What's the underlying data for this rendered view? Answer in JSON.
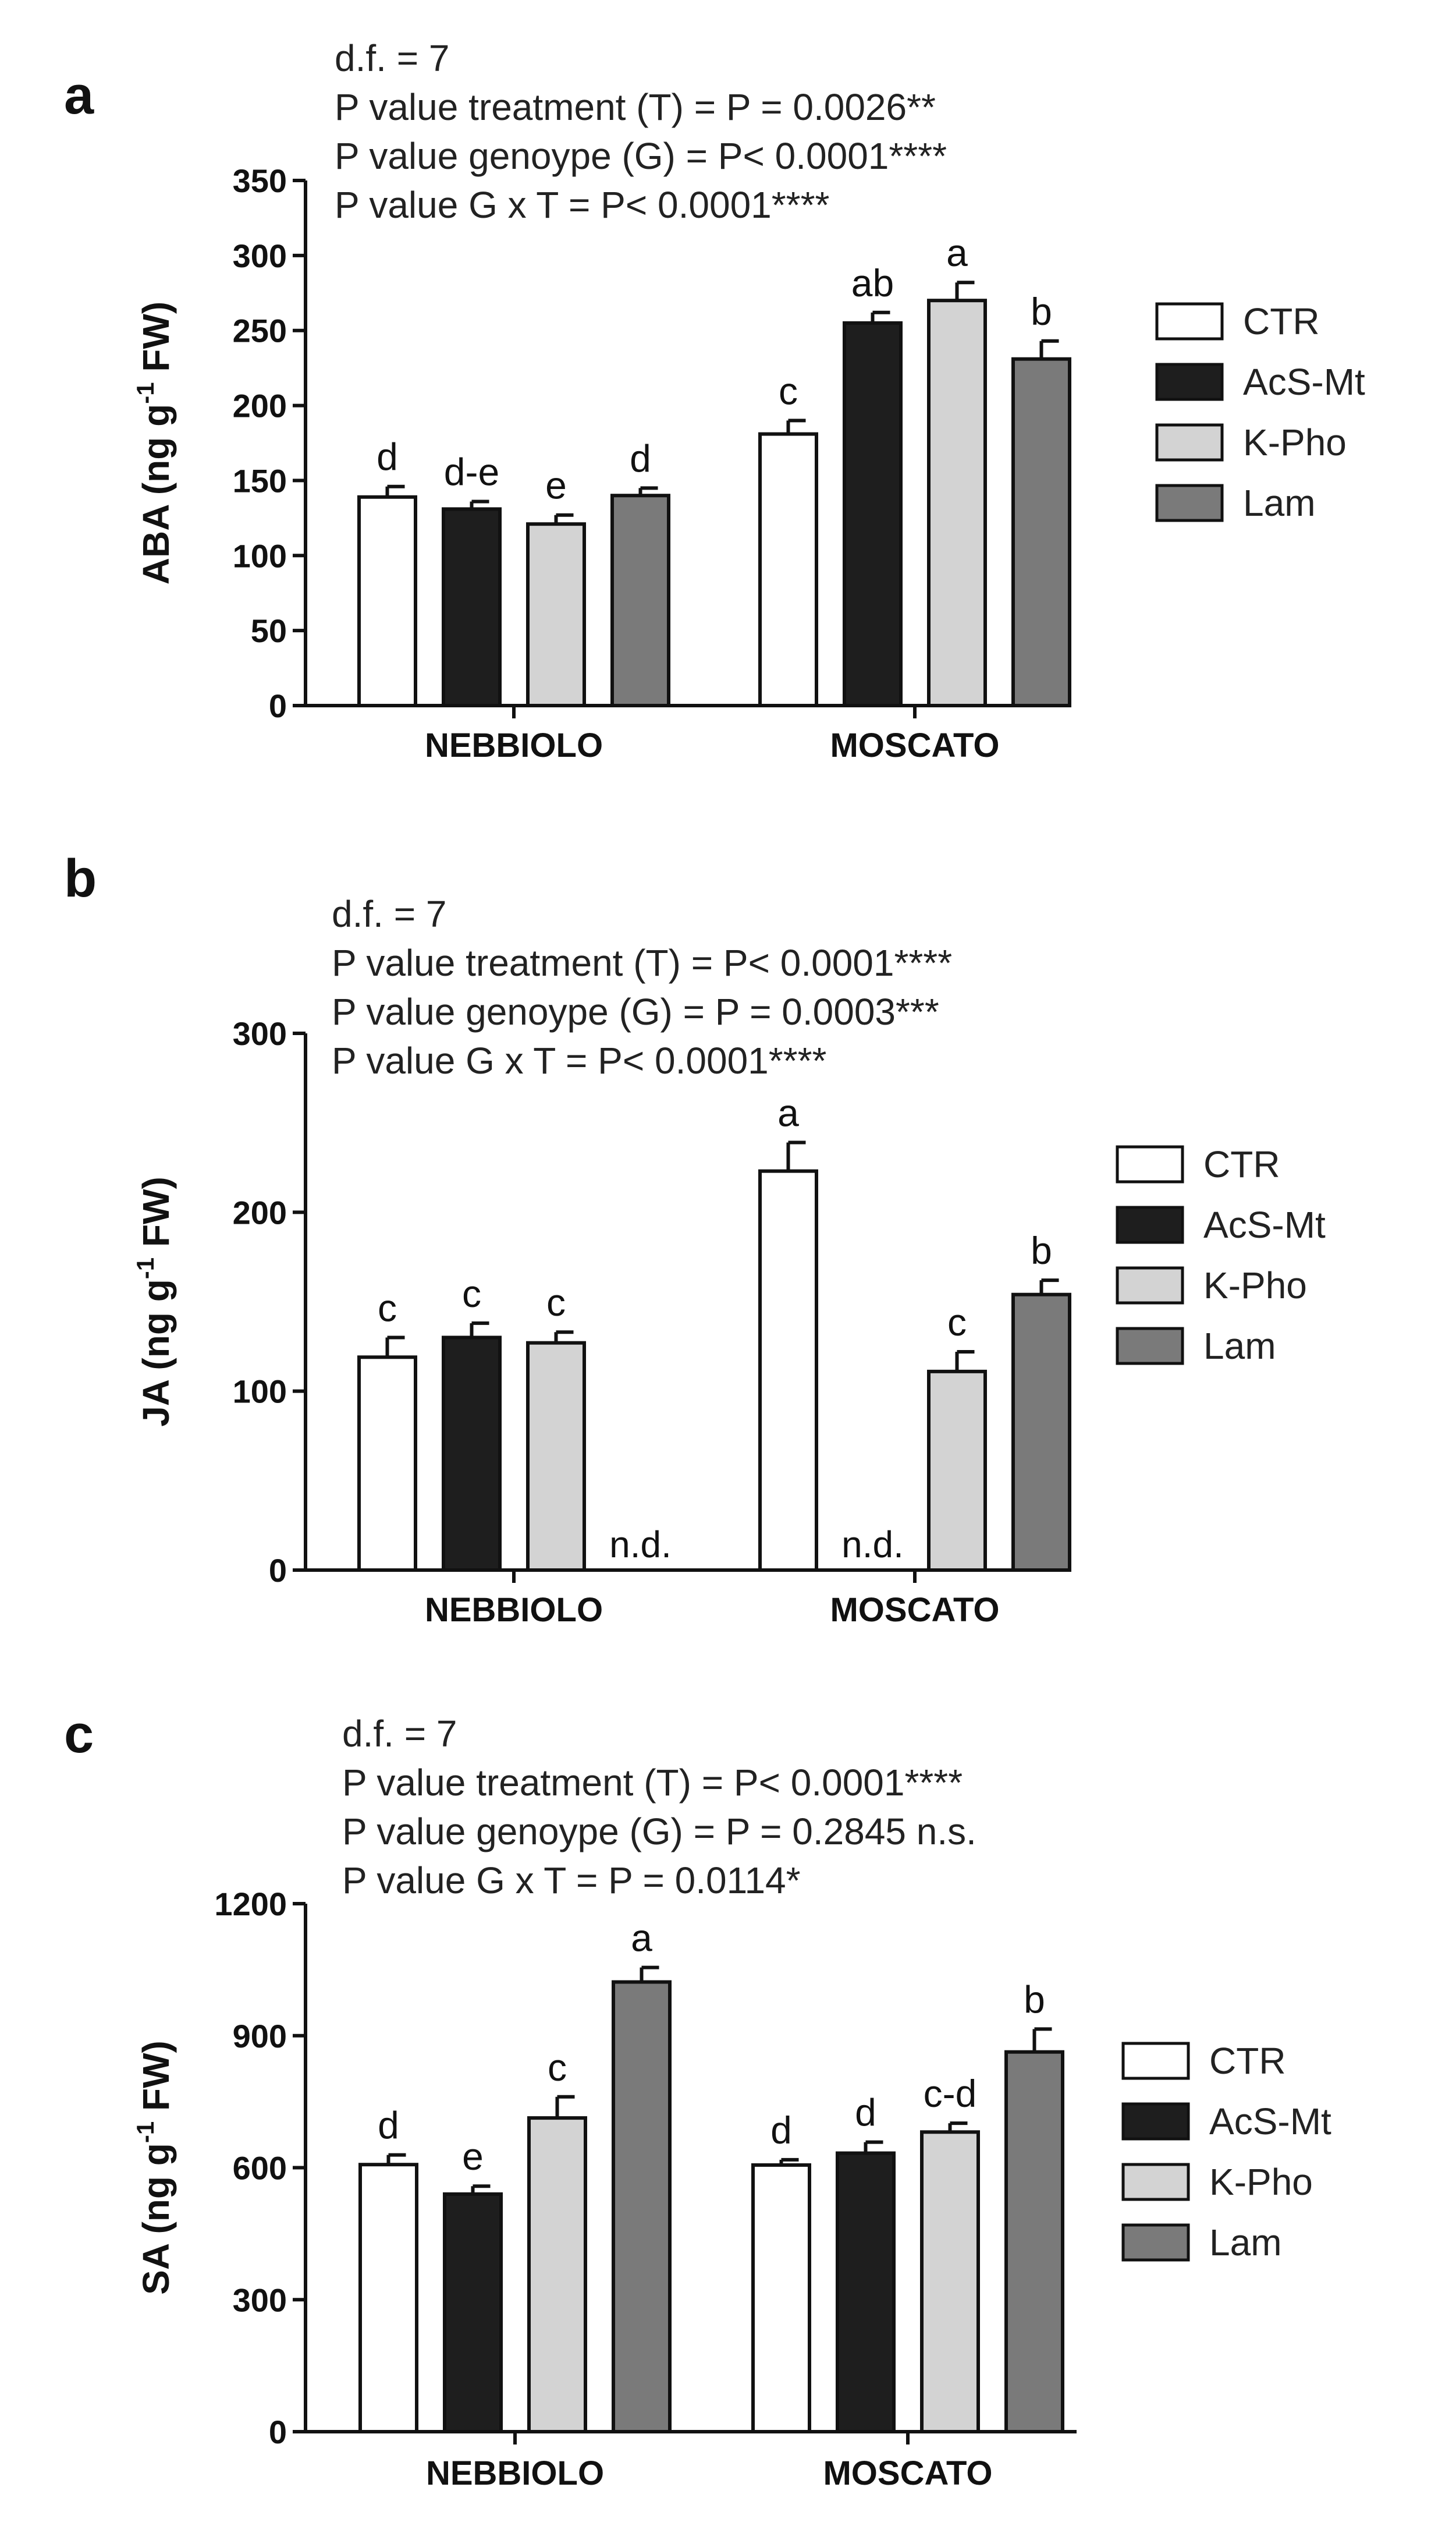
{
  "figure_title": "",
  "series_names": [
    "CTR",
    "AcS-Mt",
    "K-Pho",
    "Lam"
  ],
  "series_colors": [
    "#ffffff",
    "#1e1e1e",
    "#d3d3d3",
    "#7a7a7a"
  ],
  "chart_data": [
    {
      "panel": "a",
      "type": "bar",
      "ylabel_main": "ABA (ng g",
      "ylabel_sup": "-1",
      "ylabel_end": " FW)",
      "stats": [
        "d.f. = 7",
        "P value treatment (T) = P = 0.0026**",
        "P value genoype (G) = P< 0.0001****",
        "P value G x  T = P< 0.0001****"
      ],
      "ylim": [
        0,
        350
      ],
      "yticks": [
        0,
        50,
        100,
        150,
        200,
        250,
        300,
        350
      ],
      "categories": [
        "NEBBIOLO",
        "MOSCATO"
      ],
      "series": [
        {
          "name": "CTR",
          "values": [
            139,
            181
          ],
          "errors": [
            7,
            9
          ],
          "letters": [
            "d",
            "c"
          ]
        },
        {
          "name": "AcS-Mt",
          "values": [
            131,
            255
          ],
          "errors": [
            5,
            7
          ],
          "letters": [
            "d-e",
            "ab"
          ]
        },
        {
          "name": "K-Pho",
          "values": [
            121,
            270
          ],
          "errors": [
            6,
            12
          ],
          "letters": [
            "e",
            "a"
          ]
        },
        {
          "name": "Lam",
          "values": [
            140,
            231
          ],
          "errors": [
            5,
            12
          ],
          "letters": [
            "d",
            "b"
          ]
        }
      ]
    },
    {
      "panel": "b",
      "type": "bar",
      "ylabel_main": "JA (ng g",
      "ylabel_sup": "-1",
      "ylabel_end": " FW)",
      "stats": [
        "d.f. = 7",
        "P value treatment (T) = P< 0.0001****",
        "P value genoype (G) = P = 0.0003***",
        "P value G x  T = P< 0.0001****"
      ],
      "ylim": [
        0,
        300
      ],
      "yticks": [
        0,
        100,
        200,
        300
      ],
      "categories": [
        "NEBBIOLO",
        "MOSCATO"
      ],
      "series": [
        {
          "name": "CTR",
          "values": [
            119,
            223
          ],
          "errors": [
            11,
            16
          ],
          "letters": [
            "c",
            "a"
          ]
        },
        {
          "name": "AcS-Mt",
          "values": [
            130,
            null
          ],
          "errors": [
            8,
            null
          ],
          "letters": [
            "c",
            "n.d."
          ]
        },
        {
          "name": "K-Pho",
          "values": [
            127,
            111
          ],
          "errors": [
            6,
            11
          ],
          "letters": [
            "c",
            "c"
          ]
        },
        {
          "name": "Lam",
          "values": [
            null,
            154
          ],
          "errors": [
            null,
            8
          ],
          "letters": [
            "n.d.",
            "b"
          ]
        }
      ]
    },
    {
      "panel": "c",
      "type": "bar",
      "ylabel_main": "SA (ng g",
      "ylabel_sup": "-1",
      "ylabel_end": " FW)",
      "stats": [
        "d.f. = 7",
        "P value treatment (T) = P< 0.0001****",
        "P value genoype (G) = P = 0.2845 n.s.",
        "P value G x  T = P = 0.0114*"
      ],
      "ylim": [
        0,
        1200
      ],
      "yticks": [
        0,
        300,
        600,
        900,
        1200
      ],
      "categories": [
        "NEBBIOLO",
        "MOSCATO"
      ],
      "series": [
        {
          "name": "CTR",
          "values": [
            607,
            606
          ],
          "errors": [
            22,
            12
          ],
          "letters": [
            "d",
            "d"
          ]
        },
        {
          "name": "AcS-Mt",
          "values": [
            540,
            633
          ],
          "errors": [
            18,
            25
          ],
          "letters": [
            "e",
            "d"
          ]
        },
        {
          "name": "K-Pho",
          "values": [
            713,
            681
          ],
          "errors": [
            48,
            20
          ],
          "letters": [
            "c",
            "c-d"
          ]
        },
        {
          "name": "Lam",
          "values": [
            1022,
            863
          ],
          "errors": [
            33,
            52
          ],
          "letters": [
            "a",
            "b"
          ]
        }
      ]
    }
  ]
}
